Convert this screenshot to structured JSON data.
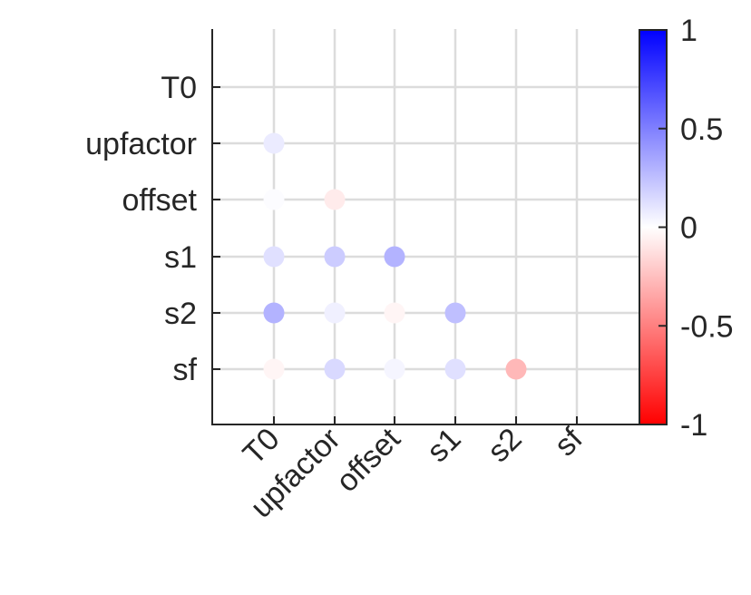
{
  "chart_data": {
    "type": "heatmap",
    "variables": [
      "T0",
      "upfactor",
      "offset",
      "s1",
      "s2",
      "sf"
    ],
    "row_labels": [
      "T0",
      "upfactor",
      "offset",
      "s1",
      "s2",
      "sf"
    ],
    "col_labels": [
      "T0",
      "upfactor",
      "offset",
      "s1",
      "s2",
      "sf"
    ],
    "lower_triangle": [
      {
        "row": "upfactor",
        "col": "T0",
        "value": 0.08
      },
      {
        "row": "offset",
        "col": "T0",
        "value": 0.01
      },
      {
        "row": "offset",
        "col": "upfactor",
        "value": -0.08
      },
      {
        "row": "s1",
        "col": "T0",
        "value": 0.12
      },
      {
        "row": "s1",
        "col": "upfactor",
        "value": 0.2
      },
      {
        "row": "s1",
        "col": "offset",
        "value": 0.3
      },
      {
        "row": "s2",
        "col": "T0",
        "value": 0.3
      },
      {
        "row": "s2",
        "col": "upfactor",
        "value": 0.06
      },
      {
        "row": "s2",
        "col": "offset",
        "value": -0.04
      },
      {
        "row": "s2",
        "col": "s1",
        "value": 0.25
      },
      {
        "row": "sf",
        "col": "T0",
        "value": -0.04
      },
      {
        "row": "sf",
        "col": "upfactor",
        "value": 0.15
      },
      {
        "row": "sf",
        "col": "offset",
        "value": 0.04
      },
      {
        "row": "sf",
        "col": "s1",
        "value": 0.12
      },
      {
        "row": "sf",
        "col": "s2",
        "value": -0.28
      }
    ],
    "colorbar": {
      "range": [
        -1,
        1
      ],
      "ticks": [
        "1",
        "0.5",
        "0",
        "-0.5",
        "-1"
      ],
      "colors": {
        "negative": "#ff0000",
        "zero": "#ffffff",
        "positive": "#0000ff"
      }
    },
    "grid": true
  }
}
